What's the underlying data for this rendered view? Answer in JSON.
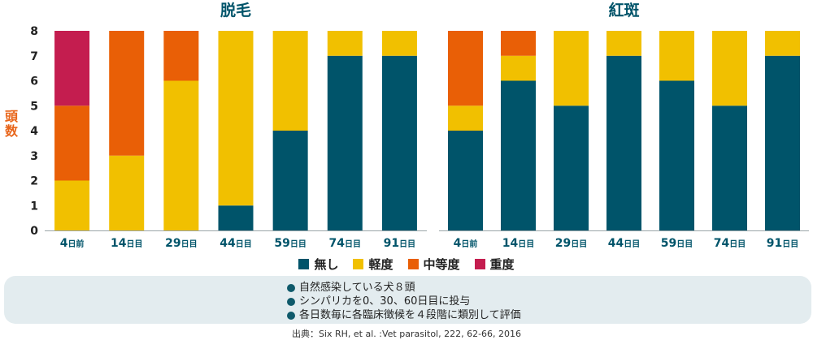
{
  "colors": {
    "none": "#00546a",
    "mild": "#f1c000",
    "moderate": "#e95f06",
    "severe": "#c41d4f"
  },
  "y_axis_label": "頭数",
  "legend": [
    {
      "label": "無し",
      "color": "#00546a"
    },
    {
      "label": "軽度",
      "color": "#f1c000"
    },
    {
      "label": "中等度",
      "color": "#e95f06"
    },
    {
      "label": "重度",
      "color": "#c41d4f"
    }
  ],
  "notes": [
    "自然感染している犬８頭",
    "シンパリカを0、30、60日目に投与",
    "各日数毎に各臨床徴候を４段階に類別して評価"
  ],
  "source": "出典：Six RH, et al. :Vet parasitol, 222, 62-66, 2016",
  "chart_data": [
    {
      "type": "bar",
      "stacked": true,
      "title": "脱毛",
      "ylabel": "頭数",
      "ylim": [
        0,
        8
      ],
      "yticks": [
        0,
        1,
        2,
        3,
        4,
        5,
        6,
        7,
        8
      ],
      "categories": [
        {
          "num": "4",
          "unit": "日前"
        },
        {
          "num": "14",
          "unit": "日目"
        },
        {
          "num": "29",
          "unit": "日目"
        },
        {
          "num": "44",
          "unit": "日目"
        },
        {
          "num": "59",
          "unit": "日目"
        },
        {
          "num": "74",
          "unit": "日目"
        },
        {
          "num": "91",
          "unit": "日目"
        }
      ],
      "series": [
        {
          "name": "無し",
          "key": "none",
          "values": [
            0,
            0,
            0,
            1,
            4,
            7,
            7
          ]
        },
        {
          "name": "軽度",
          "key": "mild",
          "values": [
            2,
            3,
            6,
            7,
            4,
            1,
            1
          ]
        },
        {
          "name": "中等度",
          "key": "moderate",
          "values": [
            3,
            5,
            2,
            0,
            0,
            0,
            0
          ]
        },
        {
          "name": "重度",
          "key": "severe",
          "values": [
            3,
            0,
            0,
            0,
            0,
            0,
            0
          ]
        }
      ]
    },
    {
      "type": "bar",
      "stacked": true,
      "title": "紅斑",
      "ylim": [
        0,
        8
      ],
      "categories": [
        {
          "num": "4",
          "unit": "日前"
        },
        {
          "num": "14",
          "unit": "日目"
        },
        {
          "num": "29",
          "unit": "日目"
        },
        {
          "num": "44",
          "unit": "日目"
        },
        {
          "num": "59",
          "unit": "日目"
        },
        {
          "num": "74",
          "unit": "日目"
        },
        {
          "num": "91",
          "unit": "日目"
        }
      ],
      "series": [
        {
          "name": "無し",
          "key": "none",
          "values": [
            4,
            6,
            5,
            7,
            6,
            5,
            7
          ]
        },
        {
          "name": "軽度",
          "key": "mild",
          "values": [
            1,
            1,
            3,
            1,
            2,
            3,
            1
          ]
        },
        {
          "name": "中等度",
          "key": "moderate",
          "values": [
            3,
            1,
            0,
            0,
            0,
            0,
            0
          ]
        },
        {
          "name": "重度",
          "key": "severe",
          "values": [
            0,
            0,
            0,
            0,
            0,
            0,
            0
          ]
        }
      ]
    }
  ]
}
